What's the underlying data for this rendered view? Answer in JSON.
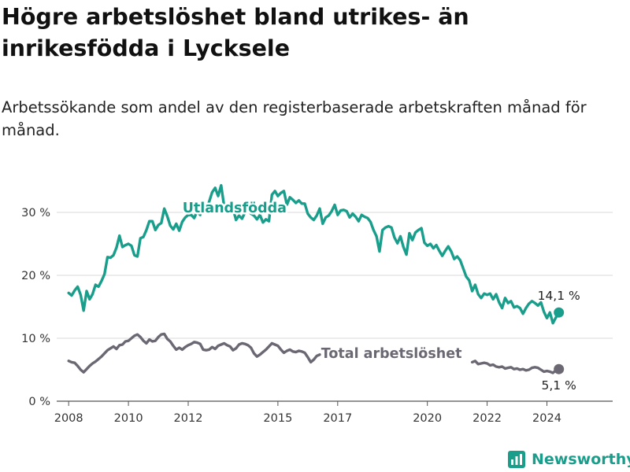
{
  "title": "Högre arbetslöshet bland utrikes- än inrikesfödda i Lycksele",
  "subtitle": "Arbetssökande som andel av den registerbaserade arbetskraften månad för månad.",
  "brand": {
    "name": "Newsworthy",
    "icon": "chart-bars-icon",
    "color": "#1a9e8c"
  },
  "chart_data": {
    "type": "line",
    "x_range": [
      2007.6,
      2026.2
    ],
    "ylim": [
      0,
      35
    ],
    "y_ticks": [
      {
        "value": 0,
        "label": "0 %"
      },
      {
        "value": 10,
        "label": "10 %"
      },
      {
        "value": 20,
        "label": "20 %"
      },
      {
        "value": 30,
        "label": "30 %"
      }
    ],
    "x_ticks": [
      {
        "value": 2008,
        "label": "2008"
      },
      {
        "value": 2010,
        "label": "2010"
      },
      {
        "value": 2012,
        "label": "2012"
      },
      {
        "value": 2015,
        "label": "2015"
      },
      {
        "value": 2017,
        "label": "2017"
      },
      {
        "value": 2020,
        "label": "2020"
      },
      {
        "value": 2022,
        "label": "2022"
      },
      {
        "value": 2024,
        "label": "2024"
      }
    ],
    "grid": true,
    "series": [
      {
        "name": "Utlandsfödda",
        "color": "#1a9e8c",
        "end_label": "14,1 %",
        "points": [
          [
            2008.0,
            17.2
          ],
          [
            2008.1,
            16.8
          ],
          [
            2008.2,
            17.6
          ],
          [
            2008.3,
            18.2
          ],
          [
            2008.4,
            16.9
          ],
          [
            2008.5,
            14.4
          ],
          [
            2008.6,
            17.5
          ],
          [
            2008.7,
            16.2
          ],
          [
            2008.8,
            17.0
          ],
          [
            2008.9,
            18.5
          ],
          [
            2009.0,
            18.2
          ],
          [
            2009.1,
            19.1
          ],
          [
            2009.2,
            20.2
          ],
          [
            2009.3,
            22.9
          ],
          [
            2009.4,
            22.8
          ],
          [
            2009.5,
            23.2
          ],
          [
            2009.6,
            24.4
          ],
          [
            2009.7,
            26.3
          ],
          [
            2009.8,
            24.5
          ],
          [
            2009.9,
            24.8
          ],
          [
            2010.0,
            25.0
          ],
          [
            2010.1,
            24.7
          ],
          [
            2010.2,
            23.2
          ],
          [
            2010.3,
            23.0
          ],
          [
            2010.4,
            25.9
          ],
          [
            2010.5,
            26.1
          ],
          [
            2010.6,
            27.2
          ],
          [
            2010.7,
            28.6
          ],
          [
            2010.8,
            28.6
          ],
          [
            2010.9,
            27.2
          ],
          [
            2011.0,
            28.0
          ],
          [
            2011.1,
            28.3
          ],
          [
            2011.2,
            30.6
          ],
          [
            2011.3,
            29.4
          ],
          [
            2011.4,
            27.9
          ],
          [
            2011.5,
            27.3
          ],
          [
            2011.6,
            28.2
          ],
          [
            2011.7,
            27.1
          ],
          [
            2011.8,
            28.5
          ],
          [
            2011.9,
            29.2
          ],
          [
            2012.0,
            29.6
          ],
          [
            2012.1,
            29.6
          ],
          [
            2012.2,
            29.1
          ],
          [
            2012.3,
            30.2
          ],
          [
            2012.4,
            29.6
          ],
          [
            2012.5,
            31.5
          ],
          [
            2012.6,
            30.2
          ],
          [
            2012.7,
            31.7
          ],
          [
            2012.8,
            33.2
          ],
          [
            2012.9,
            33.9
          ],
          [
            2013.0,
            32.6
          ],
          [
            2013.1,
            34.3
          ],
          [
            2013.2,
            31.0
          ],
          [
            2013.3,
            30.0
          ],
          [
            2013.4,
            30.2
          ],
          [
            2013.5,
            30.6
          ],
          [
            2013.6,
            28.8
          ],
          [
            2013.7,
            29.5
          ],
          [
            2013.8,
            29.0
          ],
          [
            2013.9,
            30.0
          ],
          [
            2014.0,
            30.4
          ],
          [
            2014.1,
            29.8
          ],
          [
            2014.2,
            29.5
          ],
          [
            2014.3,
            28.9
          ],
          [
            2014.4,
            29.6
          ],
          [
            2014.5,
            28.4
          ],
          [
            2014.6,
            28.9
          ],
          [
            2014.7,
            28.6
          ],
          [
            2014.8,
            32.8
          ],
          [
            2014.9,
            33.4
          ],
          [
            2015.0,
            32.6
          ],
          [
            2015.1,
            33.1
          ],
          [
            2015.2,
            33.4
          ],
          [
            2015.3,
            31.2
          ],
          [
            2015.4,
            32.4
          ],
          [
            2015.5,
            32.0
          ],
          [
            2015.6,
            31.5
          ],
          [
            2015.7,
            31.9
          ],
          [
            2015.8,
            31.4
          ],
          [
            2015.9,
            31.4
          ],
          [
            2016.0,
            29.8
          ],
          [
            2016.1,
            29.2
          ],
          [
            2016.2,
            28.8
          ],
          [
            2016.3,
            29.5
          ],
          [
            2016.4,
            30.6
          ],
          [
            2016.5,
            28.2
          ],
          [
            2016.6,
            29.2
          ],
          [
            2016.7,
            29.5
          ],
          [
            2016.8,
            30.2
          ],
          [
            2016.9,
            31.2
          ],
          [
            2017.0,
            29.6
          ],
          [
            2017.1,
            30.3
          ],
          [
            2017.2,
            30.4
          ],
          [
            2017.3,
            30.2
          ],
          [
            2017.4,
            29.2
          ],
          [
            2017.5,
            29.8
          ],
          [
            2017.6,
            29.3
          ],
          [
            2017.7,
            28.6
          ],
          [
            2017.8,
            29.6
          ],
          [
            2017.9,
            29.3
          ],
          [
            2018.0,
            29.1
          ],
          [
            2018.1,
            28.5
          ],
          [
            2018.2,
            27.2
          ],
          [
            2018.3,
            26.2
          ],
          [
            2018.4,
            23.8
          ],
          [
            2018.5,
            27.2
          ],
          [
            2018.6,
            27.6
          ],
          [
            2018.7,
            27.8
          ],
          [
            2018.8,
            27.6
          ],
          [
            2018.9,
            26.0
          ],
          [
            2019.0,
            25.1
          ],
          [
            2019.1,
            26.2
          ],
          [
            2019.2,
            24.5
          ],
          [
            2019.3,
            23.3
          ],
          [
            2019.4,
            26.7
          ],
          [
            2019.5,
            25.6
          ],
          [
            2019.6,
            26.8
          ],
          [
            2019.7,
            27.2
          ],
          [
            2019.8,
            27.5
          ],
          [
            2019.9,
            25.2
          ],
          [
            2020.0,
            24.7
          ],
          [
            2020.1,
            25.0
          ],
          [
            2020.2,
            24.3
          ],
          [
            2020.3,
            24.8
          ],
          [
            2020.4,
            23.9
          ],
          [
            2020.5,
            23.1
          ],
          [
            2020.6,
            23.9
          ],
          [
            2020.7,
            24.6
          ],
          [
            2020.8,
            23.8
          ],
          [
            2020.9,
            22.6
          ],
          [
            2021.0,
            23.0
          ],
          [
            2021.1,
            22.4
          ],
          [
            2021.2,
            21.1
          ],
          [
            2021.3,
            19.8
          ],
          [
            2021.4,
            19.2
          ],
          [
            2021.5,
            17.5
          ],
          [
            2021.6,
            18.5
          ],
          [
            2021.7,
            17.0
          ],
          [
            2021.8,
            16.4
          ],
          [
            2021.9,
            17.1
          ],
          [
            2022.0,
            16.9
          ],
          [
            2022.1,
            17.1
          ],
          [
            2022.2,
            16.2
          ],
          [
            2022.3,
            17.0
          ],
          [
            2022.4,
            15.7
          ],
          [
            2022.5,
            14.8
          ],
          [
            2022.6,
            16.4
          ],
          [
            2022.7,
            15.6
          ],
          [
            2022.8,
            15.9
          ],
          [
            2022.9,
            14.9
          ],
          [
            2023.0,
            15.1
          ],
          [
            2023.1,
            14.8
          ],
          [
            2023.2,
            13.9
          ],
          [
            2023.3,
            14.8
          ],
          [
            2023.4,
            15.5
          ],
          [
            2023.5,
            15.9
          ],
          [
            2023.6,
            15.6
          ],
          [
            2023.7,
            15.2
          ],
          [
            2023.8,
            15.7
          ],
          [
            2023.9,
            14.2
          ],
          [
            2024.0,
            13.2
          ],
          [
            2024.1,
            14.1
          ],
          [
            2024.2,
            12.4
          ],
          [
            2024.3,
            13.3
          ],
          [
            2024.4,
            14.1
          ]
        ]
      },
      {
        "name": "Total arbetslöshet",
        "color": "#6b6873",
        "end_label": "5,1 %",
        "points": [
          [
            2008.0,
            6.4
          ],
          [
            2008.1,
            6.2
          ],
          [
            2008.2,
            6.1
          ],
          [
            2008.3,
            5.6
          ],
          [
            2008.4,
            5.0
          ],
          [
            2008.5,
            4.6
          ],
          [
            2008.6,
            5.1
          ],
          [
            2008.7,
            5.6
          ],
          [
            2008.8,
            6.0
          ],
          [
            2008.9,
            6.3
          ],
          [
            2009.0,
            6.7
          ],
          [
            2009.1,
            7.1
          ],
          [
            2009.2,
            7.6
          ],
          [
            2009.3,
            8.1
          ],
          [
            2009.4,
            8.4
          ],
          [
            2009.5,
            8.7
          ],
          [
            2009.6,
            8.3
          ],
          [
            2009.7,
            8.9
          ],
          [
            2009.8,
            9.0
          ],
          [
            2009.9,
            9.5
          ],
          [
            2010.0,
            9.6
          ],
          [
            2010.1,
            10.0
          ],
          [
            2010.2,
            10.4
          ],
          [
            2010.3,
            10.6
          ],
          [
            2010.4,
            10.2
          ],
          [
            2010.5,
            9.6
          ],
          [
            2010.6,
            9.2
          ],
          [
            2010.7,
            9.8
          ],
          [
            2010.8,
            9.5
          ],
          [
            2010.9,
            9.6
          ],
          [
            2011.0,
            10.2
          ],
          [
            2011.1,
            10.6
          ],
          [
            2011.2,
            10.7
          ],
          [
            2011.3,
            9.9
          ],
          [
            2011.4,
            9.5
          ],
          [
            2011.5,
            8.8
          ],
          [
            2011.6,
            8.2
          ],
          [
            2011.7,
            8.5
          ],
          [
            2011.8,
            8.2
          ],
          [
            2011.9,
            8.6
          ],
          [
            2012.0,
            8.9
          ],
          [
            2012.1,
            9.1
          ],
          [
            2012.2,
            9.4
          ],
          [
            2012.3,
            9.3
          ],
          [
            2012.4,
            9.1
          ],
          [
            2012.5,
            8.2
          ],
          [
            2012.6,
            8.1
          ],
          [
            2012.7,
            8.2
          ],
          [
            2012.8,
            8.6
          ],
          [
            2012.9,
            8.3
          ],
          [
            2013.0,
            8.8
          ],
          [
            2013.1,
            9.0
          ],
          [
            2013.2,
            9.2
          ],
          [
            2013.3,
            8.9
          ],
          [
            2013.4,
            8.7
          ],
          [
            2013.5,
            8.1
          ],
          [
            2013.6,
            8.4
          ],
          [
            2013.7,
            9.0
          ],
          [
            2013.8,
            9.2
          ],
          [
            2013.9,
            9.1
          ],
          [
            2014.0,
            8.9
          ],
          [
            2014.1,
            8.5
          ],
          [
            2014.2,
            7.6
          ],
          [
            2014.3,
            7.1
          ],
          [
            2014.4,
            7.4
          ],
          [
            2014.5,
            7.8
          ],
          [
            2014.6,
            8.2
          ],
          [
            2014.7,
            8.7
          ],
          [
            2014.8,
            9.2
          ],
          [
            2014.9,
            9.0
          ],
          [
            2015.0,
            8.8
          ],
          [
            2015.1,
            8.2
          ],
          [
            2015.2,
            7.7
          ],
          [
            2015.3,
            8.0
          ],
          [
            2015.4,
            8.2
          ],
          [
            2015.5,
            7.9
          ],
          [
            2015.6,
            7.8
          ],
          [
            2015.7,
            8.0
          ],
          [
            2015.8,
            7.9
          ],
          [
            2015.9,
            7.7
          ],
          [
            2016.0,
            7.0
          ],
          [
            2016.1,
            6.2
          ],
          [
            2016.2,
            6.6
          ],
          [
            2016.3,
            7.2
          ],
          [
            2016.4,
            7.4
          ]
        ]
      }
    ],
    "total_hidden_range": [
      2016.5,
      2021.4
    ],
    "total_tail_points": [
      [
        2021.5,
        6.2
      ],
      [
        2021.6,
        6.4
      ],
      [
        2021.7,
        5.9
      ],
      [
        2021.8,
        6.0
      ],
      [
        2021.9,
        6.1
      ],
      [
        2022.0,
        6.0
      ],
      [
        2022.1,
        5.7
      ],
      [
        2022.2,
        5.8
      ],
      [
        2022.3,
        5.5
      ],
      [
        2022.4,
        5.4
      ],
      [
        2022.5,
        5.5
      ],
      [
        2022.6,
        5.2
      ],
      [
        2022.7,
        5.3
      ],
      [
        2022.8,
        5.4
      ],
      [
        2022.9,
        5.1
      ],
      [
        2023.0,
        5.2
      ],
      [
        2023.1,
        5.0
      ],
      [
        2023.2,
        5.1
      ],
      [
        2023.3,
        4.9
      ],
      [
        2023.4,
        5.0
      ],
      [
        2023.5,
        5.3
      ],
      [
        2023.6,
        5.4
      ],
      [
        2023.7,
        5.3
      ],
      [
        2023.8,
        5.0
      ],
      [
        2023.9,
        4.7
      ],
      [
        2024.0,
        4.8
      ],
      [
        2024.1,
        4.7
      ],
      [
        2024.2,
        4.5
      ],
      [
        2024.3,
        4.9
      ],
      [
        2024.4,
        5.1
      ]
    ]
  }
}
